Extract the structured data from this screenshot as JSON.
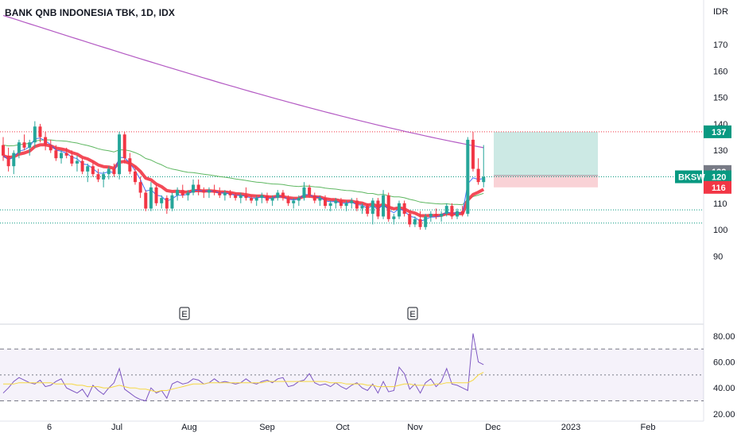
{
  "header": {
    "title": "BANK QNB INDONESIA TBK, 1D, IDX"
  },
  "colors": {
    "up": "#26a69a",
    "down": "#f23645",
    "ma_fast": "#f23645",
    "ma_mid": "#2962ff",
    "ma_long_green": "#4caf50",
    "ma_200": "#ab47bc",
    "rsi": "#7e57c2",
    "rsi_ma": "#f5d742",
    "target_zone": "#cce9e4",
    "stop_zone": "#f9d2d6"
  },
  "chart_data": {
    "type": "candlestick",
    "price_axis": {
      "unit": "IDR",
      "ticks": [
        90,
        100,
        110,
        120,
        130,
        140,
        150,
        160,
        170
      ],
      "range": [
        86,
        180
      ]
    },
    "time_axis": {
      "labels": [
        "6",
        "Jul",
        "Aug",
        "Sep",
        "Oct",
        "Nov",
        "Dec",
        "2023",
        "Feb"
      ]
    },
    "price_badges": [
      {
        "label": "137",
        "value": 137,
        "color": "#089981"
      },
      {
        "label": "122",
        "value": 122,
        "color": "#787b86"
      },
      {
        "label": "120",
        "value": 120,
        "color": "#089981"
      },
      {
        "label": "116",
        "value": 116,
        "color": "#f23645"
      }
    ],
    "symbol_badge": {
      "label": "BKSW",
      "color": "#089981"
    },
    "horizontal_lines": [
      {
        "value": 137,
        "color": "#f23645",
        "style": "dotted"
      },
      {
        "value": 120,
        "color": "#089981",
        "style": "dotted"
      },
      {
        "value": 107.5,
        "color": "#089981",
        "style": "dotted"
      },
      {
        "value": 102.5,
        "color": "#089981",
        "style": "dotted"
      }
    ],
    "position_tool": {
      "entry": 120.5,
      "target": 137,
      "stop": 116
    },
    "earnings_markers": [
      {
        "label": "E",
        "month": "Jul-Aug"
      },
      {
        "label": "E",
        "month": "Nov"
      }
    ],
    "rsi": {
      "ticks": [
        20,
        40,
        60,
        80
      ],
      "tick_labels": [
        "20.00",
        "40.00",
        "60.00",
        "80.00"
      ],
      "upper": 70,
      "middle": 50,
      "lower": 30
    },
    "candles": [
      [
        132,
        135,
        126,
        128
      ],
      [
        128,
        131,
        122,
        124
      ],
      [
        124,
        130,
        121,
        129
      ],
      [
        129,
        134,
        127,
        133
      ],
      [
        133,
        136,
        130,
        131
      ],
      [
        131,
        134,
        128,
        133
      ],
      [
        133,
        141,
        131,
        139
      ],
      [
        139,
        140,
        133,
        135
      ],
      [
        135,
        137,
        130,
        132
      ],
      [
        132,
        134,
        129,
        130
      ],
      [
        130,
        132,
        126,
        127
      ],
      [
        127,
        130,
        125,
        129
      ],
      [
        129,
        131,
        127,
        128
      ],
      [
        128,
        130,
        124,
        125
      ],
      [
        125,
        128,
        122,
        126
      ],
      [
        126,
        127,
        121,
        122
      ],
      [
        122,
        125,
        118,
        124
      ],
      [
        124,
        126,
        120,
        121
      ],
      [
        121,
        123,
        118,
        119
      ],
      [
        119,
        122,
        116,
        121
      ],
      [
        121,
        124,
        119,
        123
      ],
      [
        123,
        125,
        120,
        121
      ],
      [
        121,
        137,
        119,
        136
      ],
      [
        136,
        137,
        125,
        127
      ],
      [
        127,
        129,
        121,
        122
      ],
      [
        122,
        124,
        117,
        118
      ],
      [
        118,
        120,
        112,
        114
      ],
      [
        114,
        115,
        107,
        108
      ],
      [
        108,
        118,
        107,
        116
      ],
      [
        116,
        117,
        109,
        110
      ],
      [
        110,
        113,
        108,
        112
      ],
      [
        112,
        113,
        106,
        108
      ],
      [
        108,
        114,
        107,
        113
      ],
      [
        113,
        116,
        111,
        115
      ],
      [
        115,
        117,
        112,
        113
      ],
      [
        113,
        115,
        111,
        114
      ],
      [
        114,
        119,
        113,
        117
      ],
      [
        117,
        119,
        113,
        115
      ],
      [
        115,
        116,
        112,
        114
      ],
      [
        114,
        116,
        112,
        115
      ],
      [
        115,
        117,
        113,
        114
      ],
      [
        114,
        116,
        112,
        113
      ],
      [
        113,
        115,
        111,
        114
      ],
      [
        114,
        115,
        112,
        113
      ],
      [
        113,
        114,
        111,
        112
      ],
      [
        112,
        114,
        110,
        113
      ],
      [
        113,
        116,
        111,
        112
      ],
      [
        112,
        113,
        110,
        111
      ],
      [
        111,
        113,
        109,
        112
      ],
      [
        112,
        114,
        110,
        113
      ],
      [
        113,
        114,
        110,
        111
      ],
      [
        111,
        113,
        109,
        112
      ],
      [
        112,
        115,
        111,
        114
      ],
      [
        114,
        115,
        111,
        112
      ],
      [
        112,
        113,
        109,
        110
      ],
      [
        110,
        112,
        108,
        111
      ],
      [
        111,
        113,
        109,
        112
      ],
      [
        112,
        118,
        111,
        116
      ],
      [
        116,
        117,
        112,
        113
      ],
      [
        113,
        114,
        110,
        111
      ],
      [
        111,
        113,
        109,
        112
      ],
      [
        112,
        113,
        108,
        109
      ],
      [
        109,
        111,
        107,
        110
      ],
      [
        110,
        112,
        108,
        111
      ],
      [
        111,
        112,
        108,
        109
      ],
      [
        109,
        111,
        107,
        110
      ],
      [
        110,
        112,
        108,
        111
      ],
      [
        111,
        112,
        107,
        108
      ],
      [
        108,
        110,
        106,
        109
      ],
      [
        109,
        110,
        105,
        106
      ],
      [
        106,
        112,
        102,
        111
      ],
      [
        111,
        112,
        104,
        105
      ],
      [
        105,
        115,
        104,
        113
      ],
      [
        113,
        114,
        103,
        104
      ],
      [
        104,
        106,
        102,
        105
      ],
      [
        105,
        111,
        104,
        110
      ],
      [
        110,
        111,
        105,
        106
      ],
      [
        106,
        107,
        101,
        102
      ],
      [
        102,
        105,
        101,
        104
      ],
      [
        104,
        107,
        100,
        101
      ],
      [
        101,
        106,
        100,
        105
      ],
      [
        105,
        107,
        103,
        106
      ],
      [
        106,
        108,
        104,
        105
      ],
      [
        105,
        107,
        103,
        106
      ],
      [
        106,
        110,
        105,
        109
      ],
      [
        109,
        110,
        104,
        105
      ],
      [
        105,
        108,
        104,
        107
      ],
      [
        107,
        109,
        105,
        106
      ],
      [
        106,
        135,
        105,
        134
      ],
      [
        134,
        137,
        122,
        123
      ],
      [
        123,
        127,
        117,
        118
      ],
      [
        118,
        132,
        116,
        120
      ]
    ],
    "rsi_values": [
      36,
      40,
      45,
      48,
      46,
      44,
      43,
      46,
      41,
      42,
      45,
      47,
      40,
      38,
      36,
      39,
      33,
      42,
      38,
      35,
      40,
      44,
      55,
      39,
      36,
      33,
      31,
      30,
      40,
      36,
      38,
      32,
      43,
      45,
      43,
      44,
      47,
      46,
      43,
      44,
      47,
      44,
      45,
      44,
      43,
      44,
      47,
      44,
      43,
      45,
      46,
      44,
      47,
      48,
      41,
      42,
      45,
      46,
      51,
      44,
      42,
      43,
      41,
      44,
      41,
      39,
      42,
      44,
      40,
      38,
      43,
      36,
      45,
      37,
      38,
      56,
      51,
      39,
      43,
      36,
      44,
      47,
      41,
      45,
      55,
      43,
      42,
      40,
      38,
      82,
      60,
      58
    ],
    "rsi_ma_values": [
      43,
      43,
      43,
      44,
      44,
      44,
      44,
      44,
      44,
      44,
      43,
      43,
      43,
      43,
      42,
      42,
      41,
      41,
      41,
      40,
      40,
      41,
      42,
      41,
      40,
      40,
      39,
      39,
      38,
      37,
      38,
      38,
      39,
      40,
      41,
      42,
      43,
      43,
      43,
      44,
      44,
      44,
      44,
      44,
      44,
      44,
      44,
      44,
      44,
      44,
      45,
      45,
      45,
      45,
      45,
      45,
      45,
      45,
      45,
      45,
      45,
      45,
      44,
      44,
      44,
      43,
      43,
      43,
      43,
      42,
      42,
      41,
      41,
      41,
      41,
      42,
      43,
      43,
      42,
      42,
      42,
      42,
      43,
      43,
      44,
      44,
      44,
      44,
      44,
      46,
      50,
      52
    ]
  }
}
